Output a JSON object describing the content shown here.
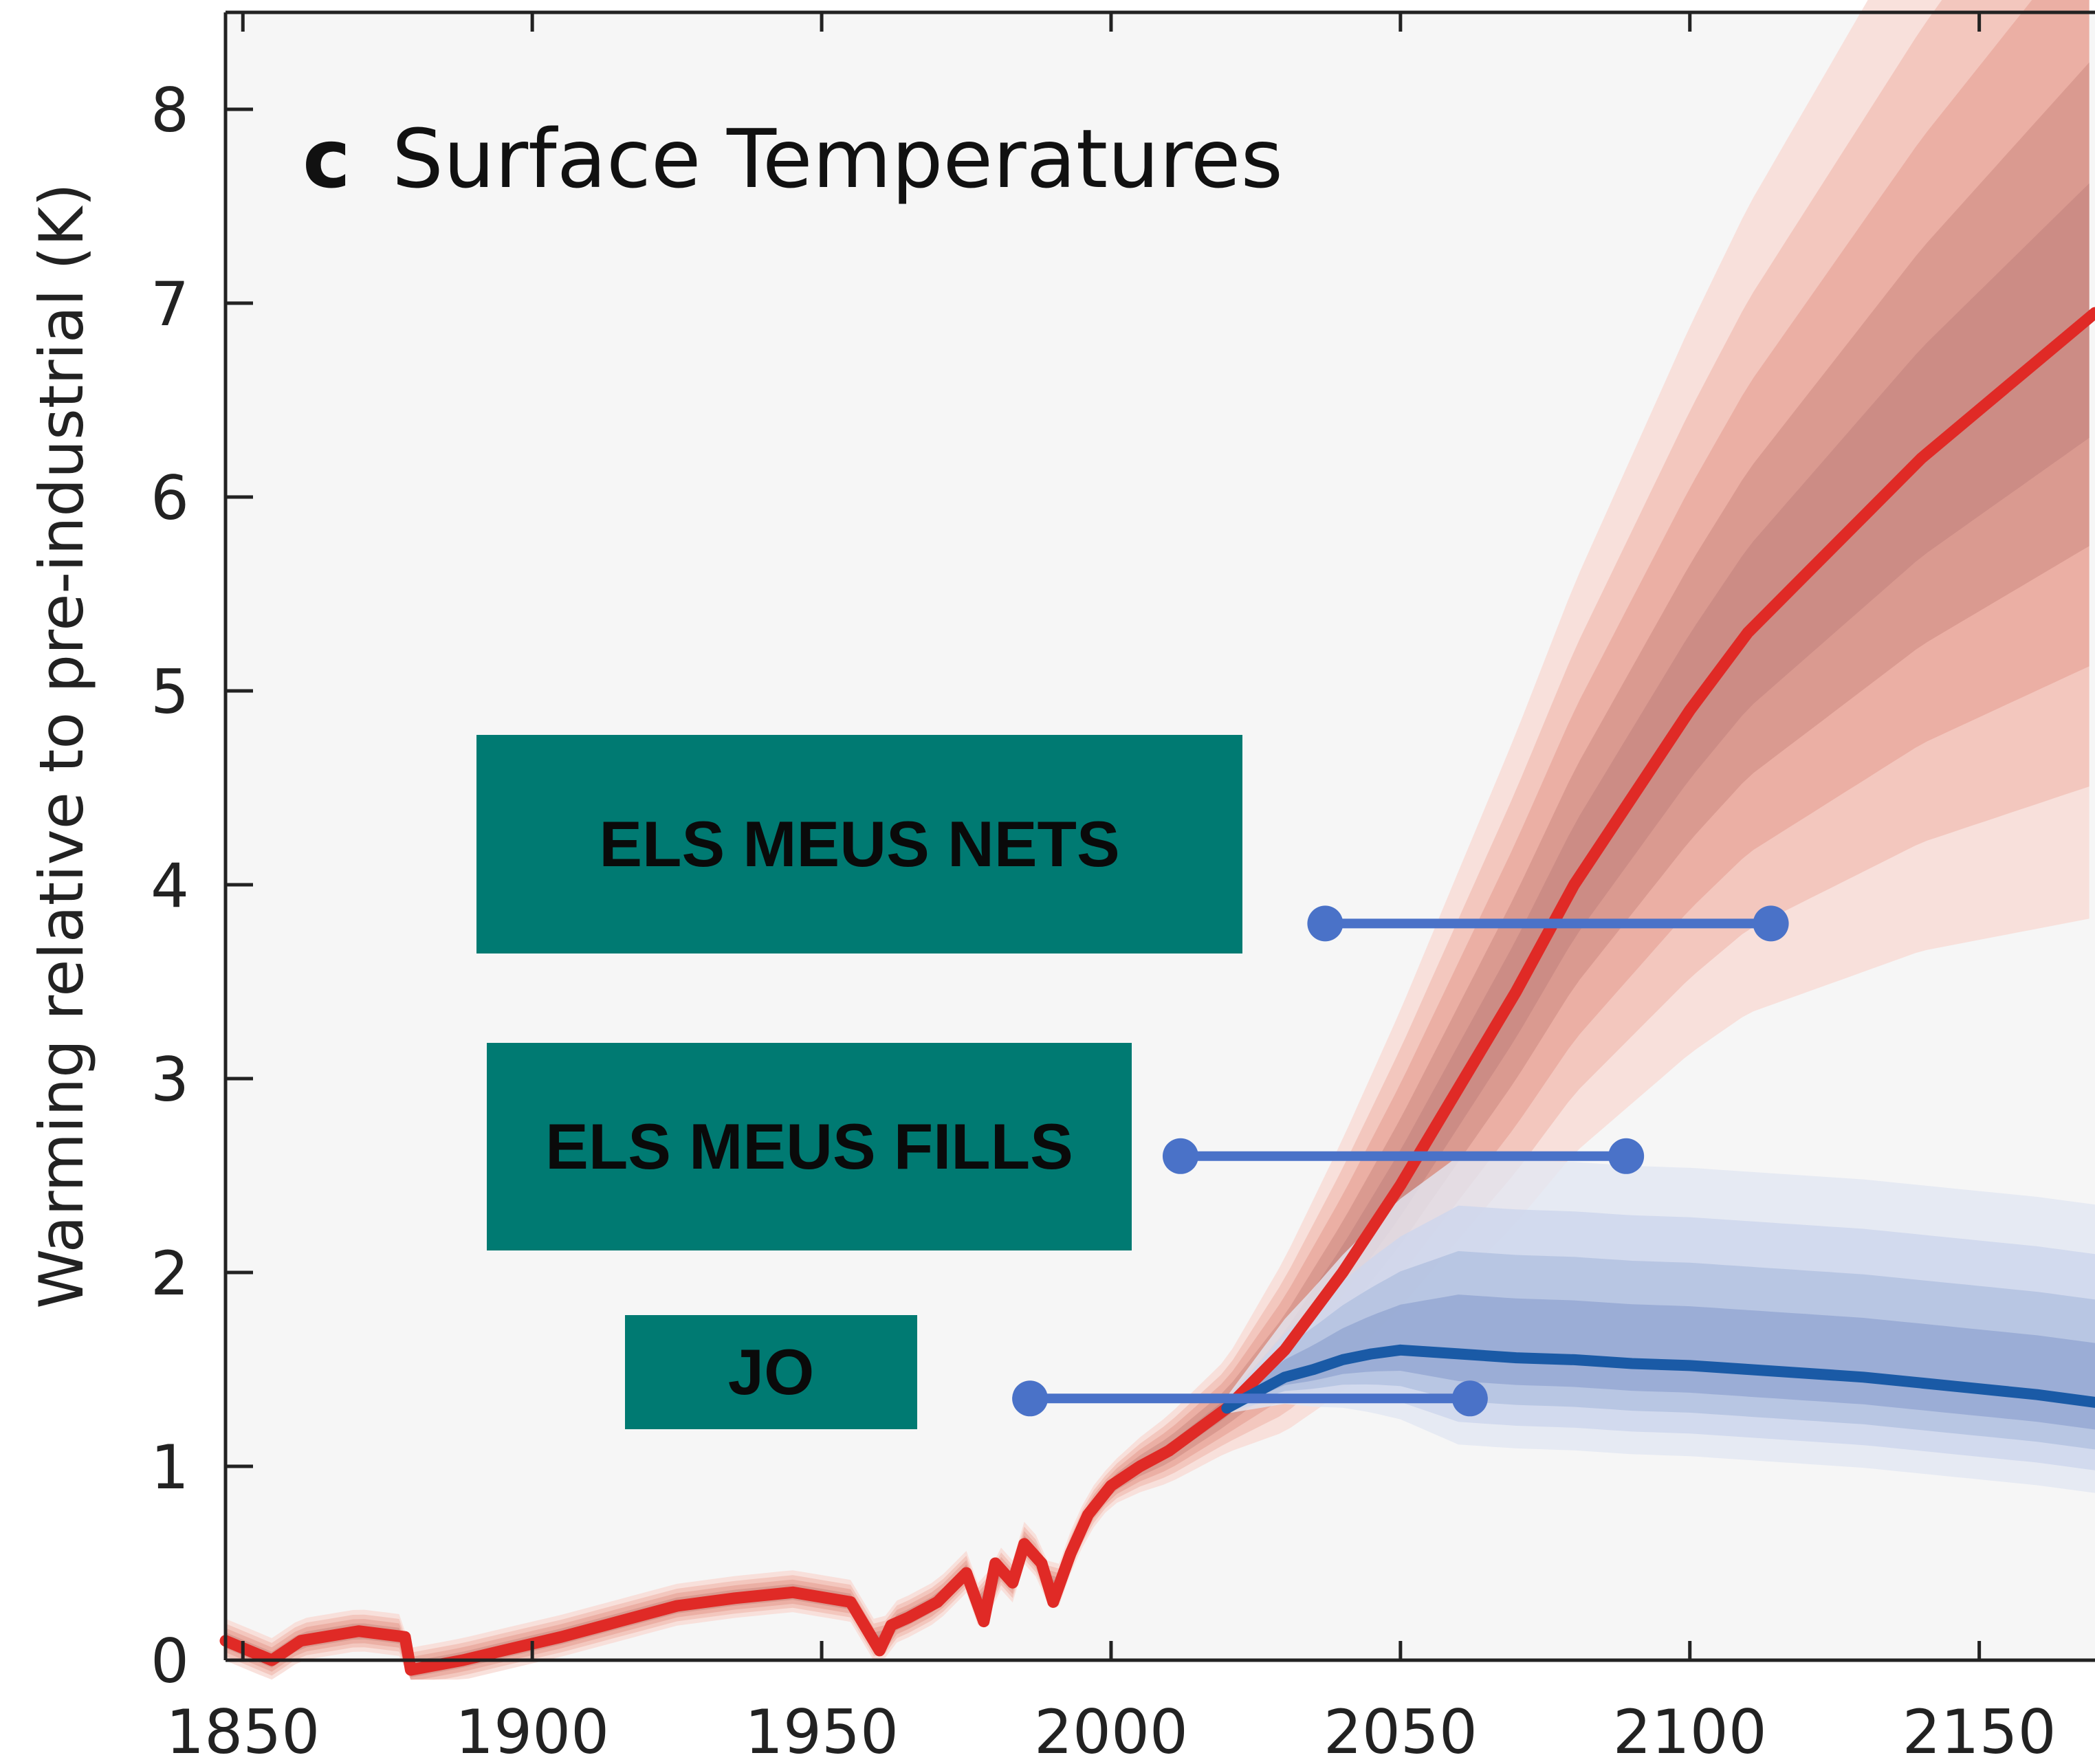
{
  "chart_data": {
    "type": "line",
    "title": "c  Surface Temperatures",
    "title_prefix": "c",
    "title_main": "Surface Temperatures",
    "xlabel": "",
    "ylabel": "Warming relative to pre-industrial (K)",
    "xlim": [
      1847,
      2170
    ],
    "ylim": [
      0,
      8.5
    ],
    "x_ticks": [
      1850,
      1900,
      1950,
      2000,
      2050,
      2100,
      2150
    ],
    "y_ticks": [
      0,
      1,
      2,
      3,
      4,
      5,
      6,
      7,
      8
    ],
    "grid": false,
    "series": [
      {
        "color": "#e02a26",
        "x": [
          1847,
          1855,
          1860,
          1870,
          1878,
          1879,
          1888,
          1895,
          1905,
          1915,
          1925,
          1935,
          1945,
          1955,
          1960,
          1962,
          1965,
          1970,
          1975,
          1978,
          1980,
          1983,
          1985,
          1988,
          1990,
          1993,
          1996,
          2000,
          2005,
          2010,
          2020,
          2030,
          2040,
          2050,
          2060,
          2070,
          2080,
          2090,
          2100,
          2110,
          2120,
          2130,
          2140,
          2150,
          2160,
          2170
        ],
        "values": [
          0.1,
          0.0,
          0.1,
          0.15,
          0.12,
          -0.05,
          0.0,
          0.05,
          0.12,
          0.2,
          0.28,
          0.32,
          0.35,
          0.3,
          0.05,
          0.18,
          0.22,
          0.3,
          0.45,
          0.2,
          0.5,
          0.4,
          0.6,
          0.5,
          0.3,
          0.55,
          0.75,
          0.9,
          1.0,
          1.08,
          1.3,
          1.6,
          2.0,
          2.45,
          2.95,
          3.45,
          4.0,
          4.45,
          4.9,
          5.3,
          5.6,
          5.9,
          6.2,
          6.45,
          6.7,
          6.95
        ]
      },
      {
        "color": "#1a5aa6",
        "x": [
          2020,
          2025,
          2030,
          2035,
          2040,
          2045,
          2050,
          2060,
          2070,
          2080,
          2090,
          2100,
          2110,
          2120,
          2130,
          2140,
          2150,
          2160,
          2170
        ],
        "values": [
          1.3,
          1.38,
          1.46,
          1.5,
          1.55,
          1.58,
          1.6,
          1.58,
          1.56,
          1.55,
          1.53,
          1.52,
          1.5,
          1.48,
          1.46,
          1.43,
          1.4,
          1.37,
          1.33
        ]
      }
    ],
    "annotations": [
      {
        "text": "ELS MEUS NETS",
        "y": 3.8,
        "x_start": 2037,
        "x_end": 2114
      },
      {
        "text": "ELS MEUS FILLS",
        "y": 2.6,
        "x_start": 2012,
        "x_end": 2089
      },
      {
        "text": "JO",
        "y": 1.35,
        "x_start": 1986,
        "x_end": 2062
      }
    ]
  },
  "theme": {
    "red": "#e02a26",
    "blue": "#1a5aa6",
    "marker_blue": "#4a72c8",
    "box_teal": "#007a72"
  }
}
